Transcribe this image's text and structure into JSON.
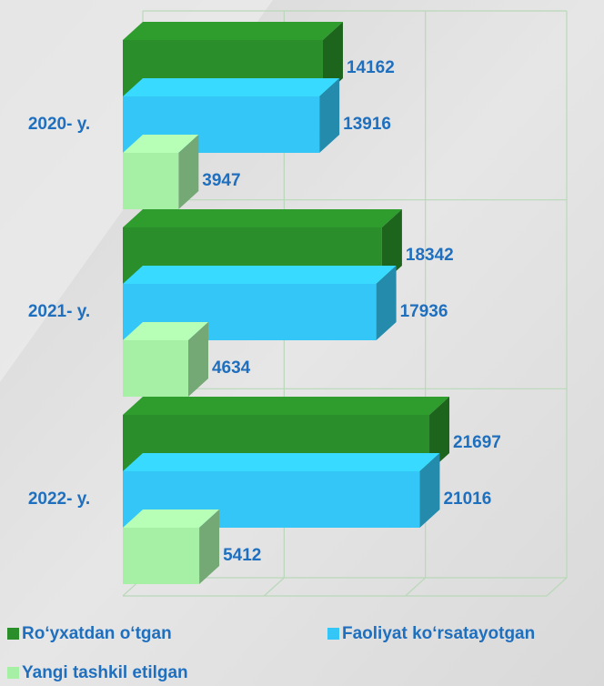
{
  "chart_data": {
    "type": "bar3d",
    "categories": [
      "2020- y.",
      "2021- y.",
      "2022- y."
    ],
    "series": [
      {
        "name": "Ro‘yxatdan o‘tgan",
        "color": "#2a8f2a",
        "values": [
          14162,
          18342,
          21697
        ]
      },
      {
        "name": "Faoliyat ko‘rsatayotgan",
        "color": "#33c6f7",
        "values": [
          13916,
          17936,
          21016
        ]
      },
      {
        "name": "Yangi tashkil etilgan",
        "color": "#a6f0a6",
        "values": [
          3947,
          4634,
          5412
        ]
      }
    ],
    "xlim": [
      0,
      30000
    ],
    "xticks": [
      0,
      10000,
      20000,
      30000
    ],
    "grid": true
  }
}
